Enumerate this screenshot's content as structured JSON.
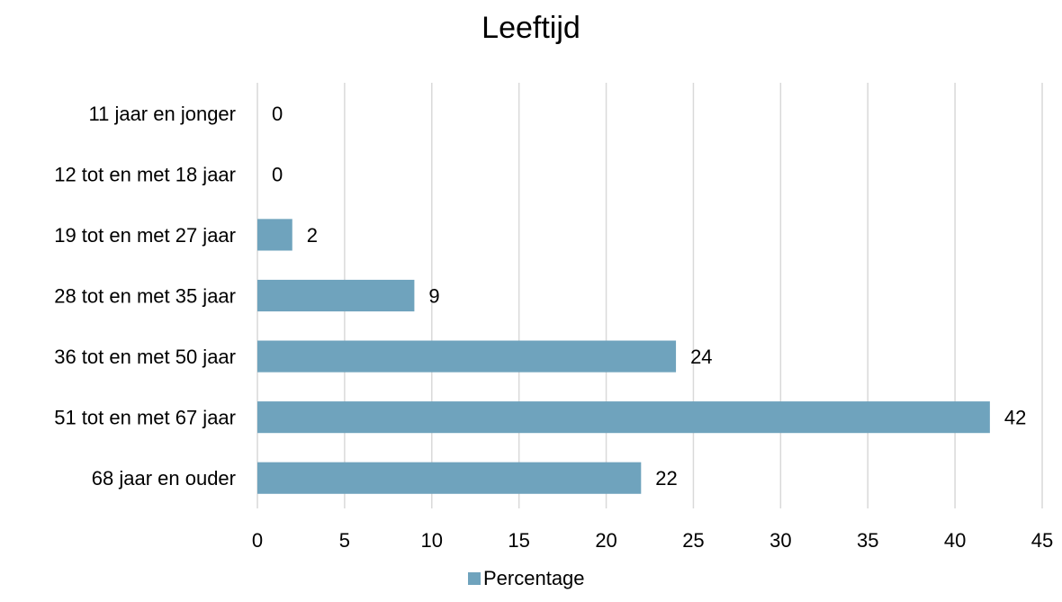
{
  "chart_data": {
    "type": "bar",
    "orientation": "horizontal",
    "title": "Leeftijd",
    "categories": [
      "11 jaar en jonger",
      "12 tot en met 18 jaar",
      "19 tot en met 27 jaar",
      "28 tot en met 35 jaar",
      "36 tot en met 50 jaar",
      "51 tot en met 67 jaar",
      "68 jaar en ouder"
    ],
    "series": [
      {
        "name": "Percentage",
        "values": [
          0,
          0,
          2,
          9,
          24,
          42,
          22
        ],
        "color": "#6fa3bd"
      }
    ],
    "data_labels": [
      "0",
      "0",
      "2",
      "9",
      "24",
      "42",
      "22"
    ],
    "xlim": [
      0,
      45
    ],
    "x_ticks": [
      0,
      5,
      10,
      15,
      20,
      25,
      30,
      35,
      40,
      45
    ],
    "x_tick_labels": [
      "0",
      "5",
      "10",
      "15",
      "20",
      "25",
      "30",
      "35",
      "40",
      "45"
    ],
    "xlabel": "",
    "ylabel": "",
    "grid": "vertical",
    "gridline_color": "#d9d9d9",
    "legend": {
      "position": "bottom",
      "entries": [
        {
          "label": "Percentage",
          "color": "#6fa3bd"
        }
      ]
    }
  }
}
